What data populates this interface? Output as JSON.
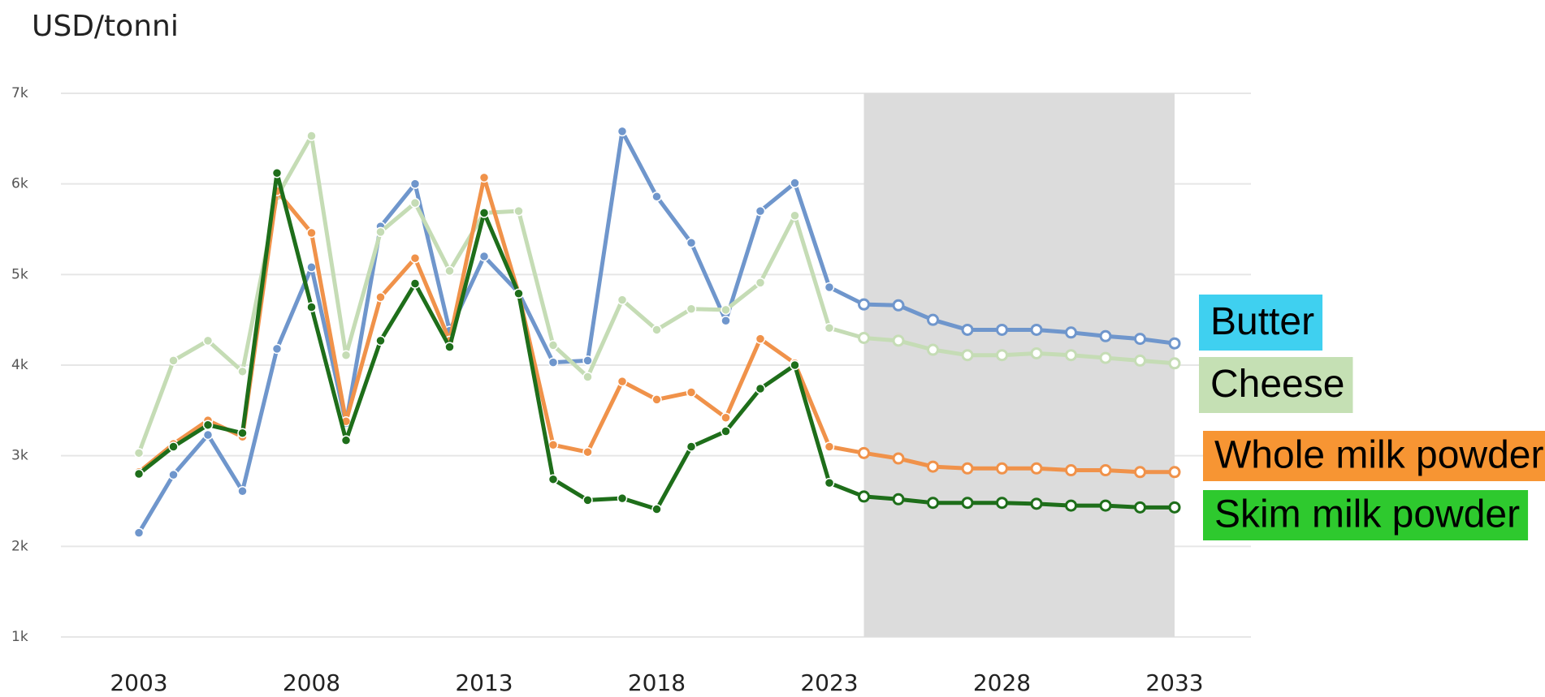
{
  "chart_data": {
    "type": "line",
    "ylabel": "USD/tonni",
    "x": [
      2003,
      2004,
      2005,
      2006,
      2007,
      2008,
      2009,
      2010,
      2011,
      2012,
      2013,
      2014,
      2015,
      2016,
      2017,
      2018,
      2019,
      2020,
      2021,
      2022,
      2023,
      2024,
      2025,
      2026,
      2027,
      2028,
      2029,
      2030,
      2031,
      2032,
      2033
    ],
    "xlim": [
      2003,
      2033
    ],
    "xticks": [
      2003,
      2008,
      2013,
      2018,
      2023,
      2028,
      2033
    ],
    "ylim": [
      1000,
      7000
    ],
    "yticks": [
      {
        "value": 1000,
        "label": "1k"
      },
      {
        "value": 2000,
        "label": "2k"
      },
      {
        "value": 3000,
        "label": "3k"
      },
      {
        "value": 4000,
        "label": "4k"
      },
      {
        "value": 5000,
        "label": "5k"
      },
      {
        "value": 6000,
        "label": "6k"
      },
      {
        "value": 7000,
        "label": "7k"
      }
    ],
    "grid": true,
    "shade": [
      2024,
      2033
    ],
    "series": [
      {
        "name": "Butter",
        "color": "#6f96cc",
        "legend_color": "#3fd0f0",
        "values": [
          2150,
          2790,
          3230,
          2610,
          4180,
          5080,
          3360,
          5530,
          6000,
          4380,
          5200,
          4800,
          4030,
          4050,
          6580,
          5860,
          5350,
          4490,
          5700,
          6010,
          4860,
          4670,
          4660,
          4500,
          4390,
          4390,
          4390,
          4360,
          4320,
          4290,
          4240
        ]
      },
      {
        "name": "Cheese",
        "color": "#c5dcb5",
        "legend_color": "#c5e0b4",
        "values": [
          3030,
          4050,
          4270,
          3930,
          5860,
          6530,
          4110,
          5470,
          5790,
          5040,
          5680,
          5700,
          4220,
          3870,
          4720,
          4390,
          4620,
          4610,
          4910,
          5650,
          4410,
          4300,
          4270,
          4170,
          4110,
          4110,
          4130,
          4110,
          4080,
          4050,
          4020
        ]
      },
      {
        "name": "Whole milk powder",
        "color": "#f0924a",
        "legend_color": "#f79533",
        "values": [
          2820,
          3130,
          3390,
          3210,
          5920,
          5460,
          3380,
          4750,
          5180,
          4270,
          6070,
          4790,
          3120,
          3040,
          3820,
          3620,
          3700,
          3420,
          4290,
          4020,
          3100,
          3030,
          2970,
          2880,
          2860,
          2860,
          2860,
          2840,
          2840,
          2820,
          2820
        ]
      },
      {
        "name": "Skim milk powder",
        "color": "#1e6e1a",
        "legend_color": "#2ec92e",
        "values": [
          2800,
          3100,
          3340,
          3250,
          6120,
          4640,
          3170,
          4270,
          4900,
          4200,
          5680,
          4790,
          2740,
          2510,
          2530,
          2410,
          3100,
          3270,
          3740,
          4000,
          2700,
          2550,
          2520,
          2480,
          2480,
          2480,
          2470,
          2450,
          2450,
          2430,
          2430
        ]
      }
    ]
  }
}
